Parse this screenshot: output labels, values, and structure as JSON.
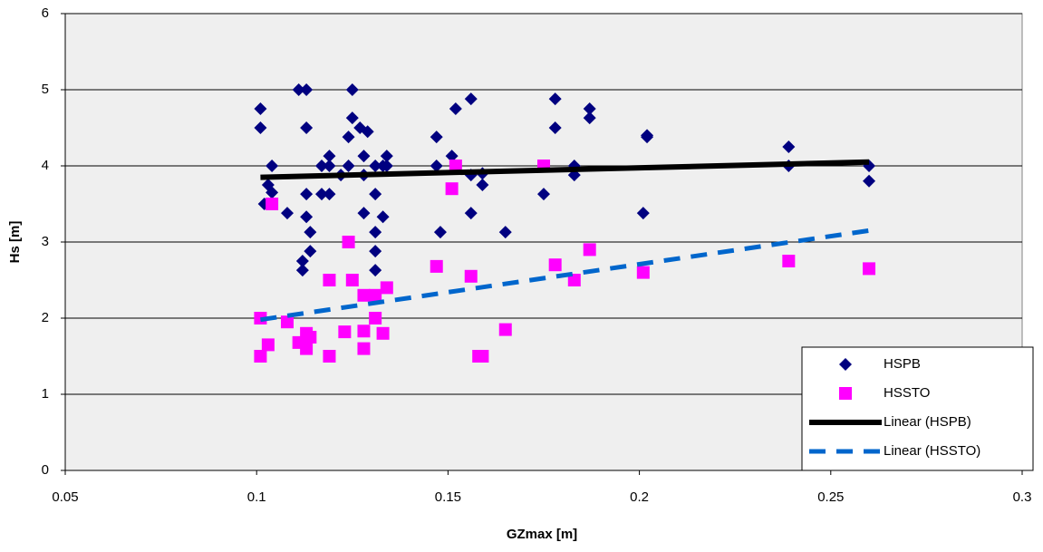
{
  "chart_data": {
    "type": "scatter",
    "xlabel": "GZmax [m]",
    "ylabel": "Hs [m]",
    "xlim": [
      0.05,
      0.3
    ],
    "xticks": [
      0.05,
      0.1,
      0.15,
      0.2,
      0.25,
      0.3
    ],
    "ylim": [
      0,
      6
    ],
    "yticks": [
      0,
      1,
      2,
      3,
      4,
      5,
      6
    ],
    "grid": true,
    "legend": "lower right",
    "series": [
      {
        "name": "HSPB",
        "color": "#000080",
        "marker": "diamond",
        "x": [
          0.101,
          0.101,
          0.102,
          0.103,
          0.104,
          0.104,
          0.108,
          0.111,
          0.113,
          0.113,
          0.112,
          0.112,
          0.113,
          0.113,
          0.114,
          0.114,
          0.117,
          0.117,
          0.119,
          0.119,
          0.119,
          0.122,
          0.124,
          0.124,
          0.125,
          0.125,
          0.127,
          0.128,
          0.128,
          0.128,
          0.129,
          0.131,
          0.131,
          0.131,
          0.131,
          0.131,
          0.133,
          0.133,
          0.134,
          0.134,
          0.147,
          0.147,
          0.148,
          0.151,
          0.152,
          0.152,
          0.156,
          0.156,
          0.156,
          0.159,
          0.159,
          0.165,
          0.175,
          0.178,
          0.178,
          0.183,
          0.183,
          0.187,
          0.187,
          0.201,
          0.202,
          0.202,
          0.239,
          0.239,
          0.26,
          0.26
        ],
        "values": [
          4.75,
          4.5,
          3.5,
          3.75,
          4.0,
          3.65,
          3.38,
          5.0,
          5.0,
          4.5,
          2.75,
          2.63,
          3.63,
          3.33,
          3.13,
          2.88,
          4.0,
          3.63,
          4.13,
          4.0,
          3.63,
          3.88,
          4.38,
          4.0,
          5.0,
          4.63,
          4.5,
          4.13,
          3.88,
          3.38,
          4.45,
          4.0,
          3.63,
          3.13,
          2.88,
          2.63,
          4.0,
          3.33,
          4.13,
          4.0,
          4.38,
          4.0,
          3.13,
          4.13,
          4.75,
          4.0,
          4.88,
          3.88,
          3.38,
          3.75,
          3.9,
          3.13,
          3.63,
          4.88,
          4.5,
          4.0,
          3.88,
          4.75,
          4.63,
          3.38,
          4.38,
          4.4,
          4.25,
          4.0,
          4.0,
          3.8
        ]
      },
      {
        "name": "HSSTO",
        "color": "#ff00ff",
        "marker": "square",
        "x": [
          0.101,
          0.101,
          0.103,
          0.104,
          0.108,
          0.111,
          0.113,
          0.113,
          0.114,
          0.119,
          0.119,
          0.123,
          0.124,
          0.125,
          0.128,
          0.128,
          0.128,
          0.131,
          0.131,
          0.133,
          0.134,
          0.147,
          0.151,
          0.152,
          0.156,
          0.158,
          0.159,
          0.165,
          0.175,
          0.178,
          0.183,
          0.187,
          0.201,
          0.239,
          0.26
        ],
        "values": [
          2.0,
          1.5,
          1.65,
          3.5,
          1.95,
          1.68,
          1.8,
          1.6,
          1.75,
          2.5,
          1.5,
          1.82,
          3.0,
          2.5,
          2.3,
          1.83,
          1.6,
          2.3,
          2.0,
          1.8,
          2.4,
          2.68,
          3.7,
          4.0,
          2.55,
          1.5,
          1.5,
          1.85,
          4.0,
          2.7,
          2.5,
          2.9,
          2.6,
          2.75,
          2.65
        ]
      },
      {
        "name": "Linear (HSPB)",
        "color": "#000000",
        "marker": "line",
        "x": [
          0.101,
          0.26
        ],
        "values": [
          3.85,
          4.05
        ]
      },
      {
        "name": "Linear (HSSTO)",
        "color": "#0066cc",
        "marker": "dashed-line",
        "x": [
          0.101,
          0.26
        ],
        "values": [
          1.98,
          3.15
        ]
      }
    ]
  }
}
